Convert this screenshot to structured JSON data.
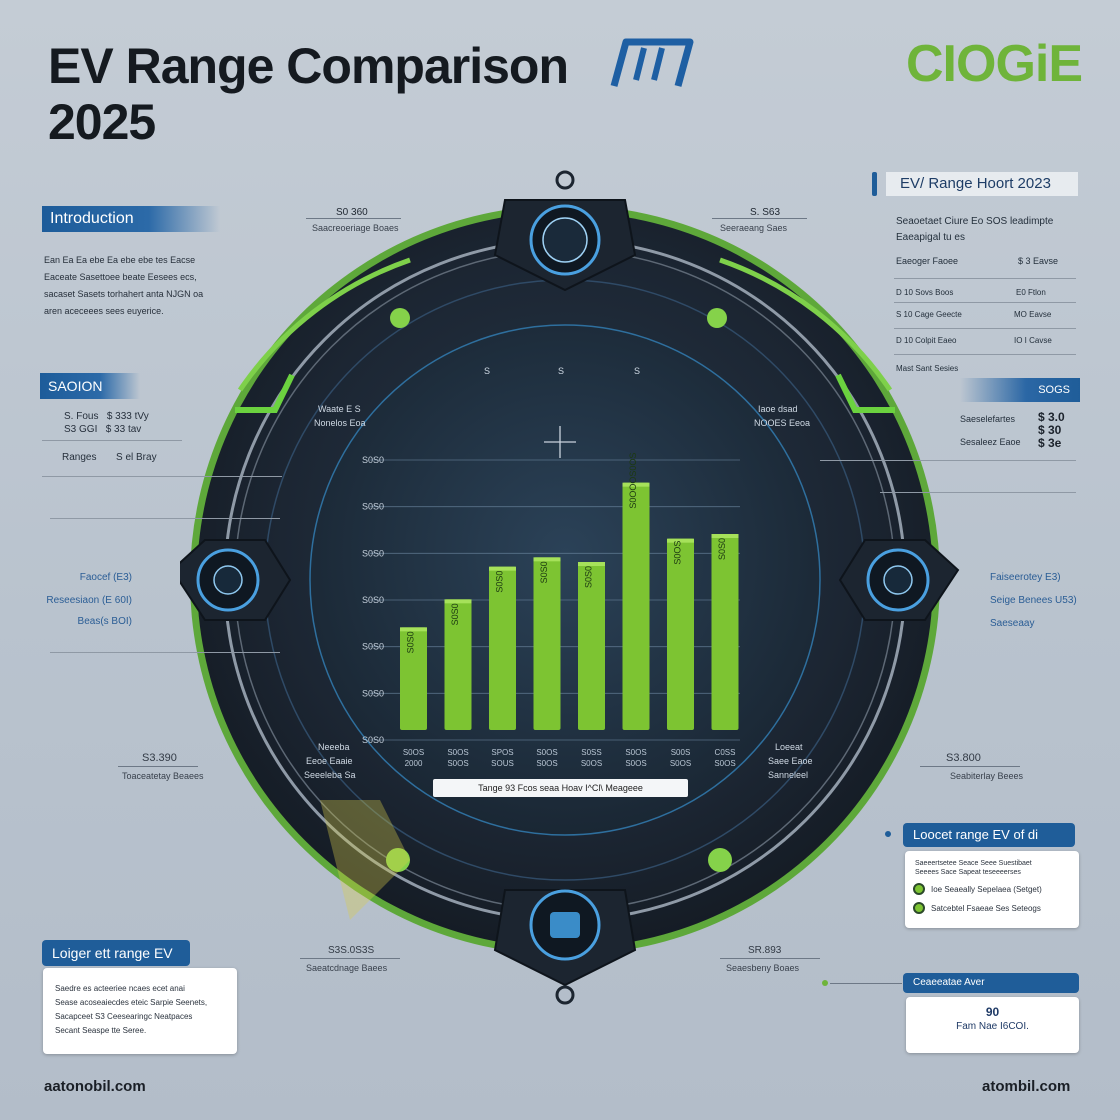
{
  "header": {
    "title_line1": "EV Range Comparison",
    "title_line2": "2025",
    "brand": "CIOGiE"
  },
  "left_panel": {
    "intro_tag": "Introduction",
    "intro_lines": [
      "Ean Ea Ea ebe Ea ebe ebe tes Eacse",
      "Eaceate Sasettoee beate Eesees ecs,",
      "sacaset Sasets torhahert anta NJGN oa",
      "aren aceceees sees euyerice."
    ],
    "section_tag": "SAOION",
    "section_rows": [
      {
        "label": "S. Fous",
        "value": "$ 333 tVy"
      },
      {
        "label": "S3 GGI",
        "value": "$ 33 tav"
      }
    ],
    "ranges_label": "Ranges",
    "ranges_value": "S el Bray",
    "side_items": [
      "Faocef (E3)",
      "Reseesiaon (E 60I)",
      "Beas(s BOI)"
    ],
    "bottom_value": "S3.390",
    "bottom_caption": "Toaceatetay Beaees",
    "longest_tag": "Loiger ett range EV",
    "longest_lines": [
      "Saedre es acteeriee ncaes ecet anai",
      "Sease acoseaiecdes eteic Sarpie Seenets,",
      "Sacapceet S3 Ceesearingc Neatpaces",
      "Secant Seaspe tte Seree."
    ]
  },
  "right_panel": {
    "report_tag": "EV/ Range Hoort 2023",
    "report_lines": [
      "Seaoetaet Ciure Eo SOS leadimpte",
      "Eaeapigal tu es"
    ],
    "table_header": {
      "label": "Eaeoger Faoee",
      "value": "$ 3 Eavse"
    },
    "table_rows": [
      {
        "label": "D  10  Sovs Boos",
        "value": "E0 Ftlon"
      },
      {
        "label": "S  10  Cage Geecte",
        "value": "MO Eavse"
      },
      {
        "label": "D  10  Colpit Eaeo",
        "value": "IO I Cavse"
      }
    ],
    "table_footer": "Mast Sant Sesies",
    "spec_tag": "SOGS",
    "spec_rows": [
      {
        "label": "Saeselefartes",
        "value": "$ 3.0"
      },
      {
        "label": "",
        "value": "$ 30"
      },
      {
        "label": "Sesaleez Eaoe",
        "value": "$ 3e"
      }
    ],
    "side_items": [
      "Faiseerotey E3)",
      "Seige Benees U53)",
      "Saeseaay"
    ],
    "bottom_value": "S3.800",
    "bottom_caption": "Seabiterlay Beees",
    "lowest_tag": "Loocet   range EV  of di",
    "lowest_lines": [
      "Saeeertsetee Seace Seee Suestibaet",
      "Seeees Sace Sapeat teseeeerses"
    ],
    "lowest_items": [
      "Ioe Seaeally Sepelaea (Setget)",
      "Satcebtel Fsaeae Ses Seteogs"
    ],
    "contact_tag": "Ceaeeatae  Aver",
    "contact_line1": "90",
    "contact_line2": "Fam Nae I6COI."
  },
  "gauge": {
    "top_left_value": "S0 360",
    "top_left_caption": "Saacreoeriage Boaes",
    "top_right_value": "S. S63",
    "top_right_caption": "Seeraeang Saes",
    "bottom_left_value": "S3S.0S3S",
    "bottom_left_caption": "Saeatcdnage Baees",
    "bottom_right_value": "SR.893",
    "bottom_right_caption": "Seaesbeny Boaes",
    "inner_left_caption": "Waate E S",
    "inner_left_caption2": "Nonelos Eoa",
    "inner_right_caption": "Iaoe dsad",
    "inner_right_caption2": "NOOES Eeoa",
    "inner_top_labels": [
      "S",
      "S",
      "S"
    ],
    "inner_low_left": [
      "Neeeba",
      "Eeoe Eaaie",
      "Seeeleba Sa"
    ],
    "inner_low_right": [
      "Loeeat",
      "Saee Eaoe",
      "Sanneleel"
    ]
  },
  "chart_data": {
    "type": "bar",
    "title": "",
    "caption": "Tange 93 Fcos seaa Hoav I^Cl\\ Meageee",
    "y_tick_labels": [
      "S0S0",
      "S0S0",
      "S0S0",
      "S0S0",
      "S0S0",
      "S0S0",
      "S0S0"
    ],
    "categories": [
      "S0OS\n2000",
      "S0OS\nS0OS",
      "SPOS\nSOUS",
      "S0OS\nS0OS",
      "S0SS\nS0OS",
      "S0OS\nS0OS",
      "S00S\nS0OS",
      "C0SS\nS0OS"
    ],
    "values": [
      310,
      340,
      375,
      385,
      380,
      465,
      405,
      410
    ],
    "bar_labels": [
      "S0S0",
      "S0S0",
      "S0S0",
      "S0S0",
      "S0S0",
      "S0OOOS0OS",
      "S0OS",
      "S0S0"
    ],
    "ylim": [
      200,
      500
    ],
    "grid": true,
    "bar_color": "#7dc432"
  },
  "footer": {
    "left": "aatonobil.com",
    "right": "atombil.com"
  },
  "colors": {
    "accent_blue": "#1f5d99",
    "accent_green": "#6fb43a",
    "dial_dark": "#1d2530"
  }
}
